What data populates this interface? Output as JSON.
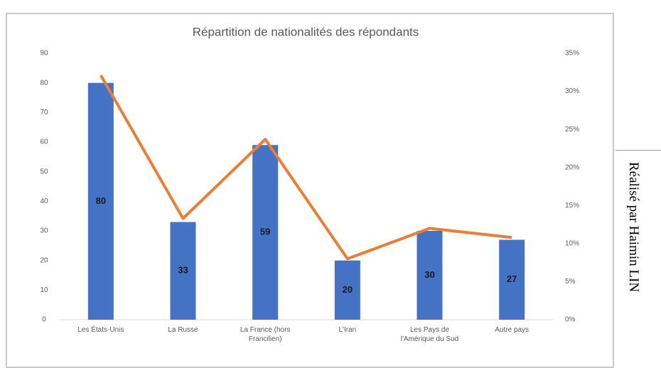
{
  "chart_data": {
    "type": "bar_line",
    "title": "Répartition de nationalités des répondants",
    "categories": [
      "Les États-Unis",
      "La Russe",
      "La France (hors Francilien)",
      "L'Iran",
      "Les Pays de l'Amérique du Sud",
      "Autre pays"
    ],
    "series": [
      {
        "type": "bar",
        "color": "#4472c4",
        "values": [
          80,
          33,
          59,
          20,
          30,
          27
        ]
      },
      {
        "type": "line",
        "color": "#ed7d31",
        "axis": "y2",
        "values": [
          32.1,
          13.3,
          23.7,
          8.0,
          12.0,
          10.8
        ]
      }
    ],
    "ylim": [
      0,
      90
    ],
    "yticks": [
      0,
      10,
      20,
      30,
      40,
      50,
      60,
      70,
      80,
      90
    ],
    "y2lim": [
      0,
      35
    ],
    "y2ticks": [
      {
        "value": 0,
        "label": "0%"
      },
      {
        "value": 5,
        "label": "5%"
      },
      {
        "value": 10,
        "label": "10%"
      },
      {
        "value": 15,
        "label": "15%"
      },
      {
        "value": 20,
        "label": "20%"
      },
      {
        "value": 25,
        "label": "25%"
      },
      {
        "value": 30,
        "label": "30%"
      },
      {
        "value": 35,
        "label": "35%"
      }
    ],
    "grid": false
  },
  "side_note": "Réalisé par Haimin LIN"
}
